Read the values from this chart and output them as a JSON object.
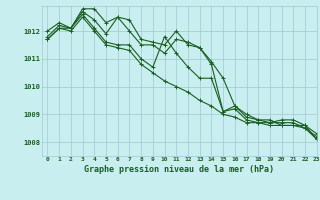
{
  "title": "Graphe pression niveau de la mer (hPa)",
  "bg_color": "#c8eef0",
  "grid_color": "#a0c8d0",
  "line_color": "#1a5e20",
  "xlim": [
    -0.5,
    23
  ],
  "ylim": [
    1007.5,
    1012.9
  ],
  "yticks": [
    1008,
    1009,
    1010,
    1011,
    1012
  ],
  "xticks": [
    0,
    1,
    2,
    3,
    4,
    5,
    6,
    7,
    8,
    9,
    10,
    11,
    12,
    13,
    14,
    15,
    16,
    17,
    18,
    19,
    20,
    21,
    22,
    23
  ],
  "series": [
    [
      1011.8,
      1012.2,
      1012.1,
      1012.7,
      1012.4,
      1011.9,
      1012.5,
      1012.4,
      1011.7,
      1011.6,
      1011.5,
      1012.0,
      1011.5,
      1011.4,
      1010.8,
      1009.1,
      1009.2,
      1008.8,
      1008.7,
      1008.6,
      1008.6,
      1008.6,
      1008.5,
      1008.1
    ],
    [
      1012.0,
      1012.3,
      1012.1,
      1012.8,
      1012.8,
      1012.3,
      1012.5,
      1012.0,
      1011.5,
      1011.5,
      1011.2,
      1011.7,
      1011.6,
      1011.4,
      1010.9,
      1010.3,
      1009.3,
      1009.0,
      1008.8,
      1008.8,
      1008.6,
      1008.6,
      1008.6,
      1008.3
    ],
    [
      1011.7,
      1012.1,
      1012.1,
      1012.6,
      1012.1,
      1011.6,
      1011.5,
      1011.5,
      1011.0,
      1010.7,
      1011.8,
      1011.2,
      1010.7,
      1010.3,
      1010.3,
      1009.1,
      1009.3,
      1008.9,
      1008.8,
      1008.7,
      1008.7,
      1008.7,
      1008.5,
      1008.2
    ],
    [
      1011.7,
      1012.1,
      1012.0,
      1012.5,
      1012.0,
      1011.5,
      1011.4,
      1011.3,
      1010.8,
      1010.5,
      1010.2,
      1010.0,
      1009.8,
      1009.5,
      1009.3,
      1009.0,
      1008.9,
      1008.7,
      1008.7,
      1008.7,
      1008.8,
      1008.8,
      1008.6,
      1008.1
    ]
  ]
}
